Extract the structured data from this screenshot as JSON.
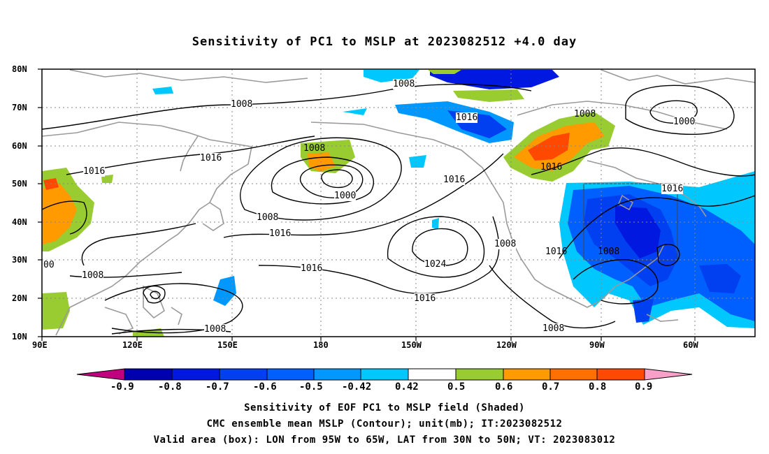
{
  "title": "Sensitivity of PC1 to MSLP at 2023082512 +4.0 day",
  "lat_labels": [
    "80N",
    "70N",
    "60N",
    "50N",
    "40N",
    "30N",
    "20N",
    "10N"
  ],
  "lon_labels": [
    "90E",
    "120E",
    "150E",
    "180",
    "150W",
    "120W",
    "90W",
    "60W"
  ],
  "contour_labels": [
    {
      "text": "1008"
    },
    {
      "text": "1008"
    },
    {
      "text": "1016"
    },
    {
      "text": "1008"
    },
    {
      "text": "1000"
    },
    {
      "text": "1016"
    },
    {
      "text": "1008"
    },
    {
      "text": "1016"
    },
    {
      "text": "1000"
    },
    {
      "text": "1016"
    },
    {
      "text": "1008"
    },
    {
      "text": "1016"
    },
    {
      "text": "1016"
    },
    {
      "text": "1008"
    },
    {
      "text": "1024"
    },
    {
      "text": "1016"
    },
    {
      "text": "1016"
    },
    {
      "text": "1008"
    },
    {
      "text": "1008"
    },
    {
      "text": "1008"
    },
    {
      "text": "1016"
    },
    {
      "text": "1008"
    },
    {
      "text": "00"
    }
  ],
  "colorbar": {
    "labels": [
      "-0.9",
      "-0.8",
      "-0.7",
      "-0.6",
      "-0.5",
      "-0.42",
      "0.42",
      "0.5",
      "0.6",
      "0.7",
      "0.8",
      "0.9"
    ],
    "colors": [
      "#c0007f",
      "#0000b0",
      "#0018e0",
      "#0040f0",
      "#0060ff",
      "#0098ff",
      "#00c8ff",
      "#ffffff",
      "#98cc30",
      "#ff9a00",
      "#ff7000",
      "#ff4800",
      "#ff1000",
      "#f8a0c8"
    ]
  },
  "captions": [
    "Sensitivity of EOF PC1 to MSLP field (Shaded)",
    "CMC ensemble mean MSLP (Contour); unit(mb); IT:2023082512",
    "Valid area (box): LON from 95W to 65W, LAT from 30N to 50N; VT: 2023083012"
  ]
}
